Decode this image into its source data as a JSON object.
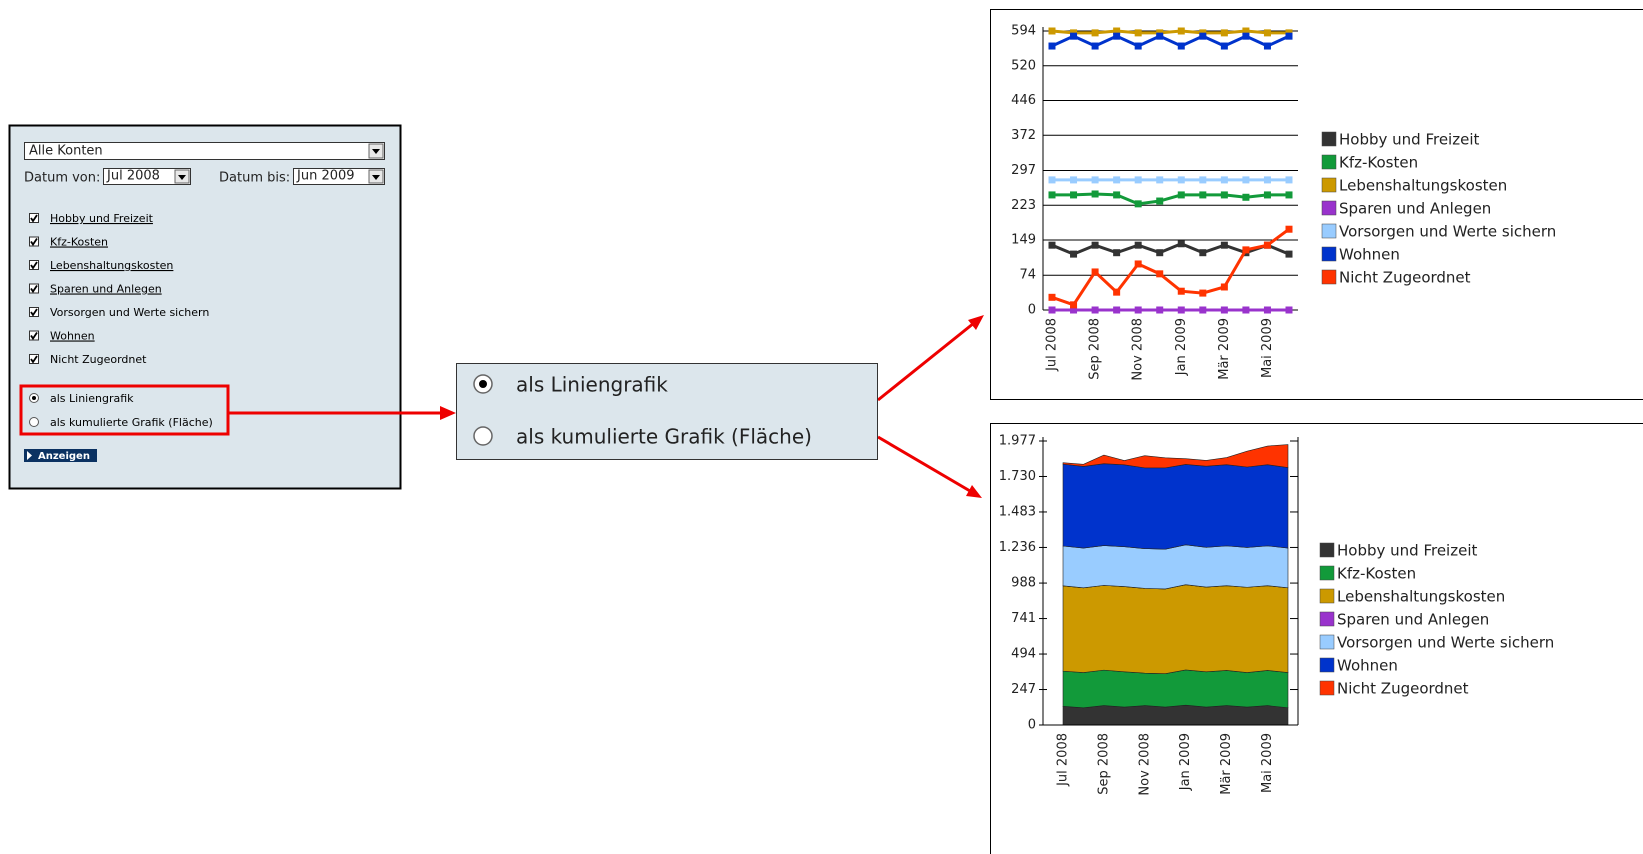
{
  "form": {
    "account": "Alle Konten",
    "from_label": "Datum von:",
    "from_value": "Jul 2008",
    "to_label": "Datum bis:",
    "to_value": "Jun 2009",
    "checkboxes": [
      "Hobby und Freizeit",
      "Kfz-Kosten",
      "Lebenshaltungskosten",
      "Sparen und Anlegen",
      "Vorsorgen und Werte sichern",
      "Wohnen",
      "Nicht Zugeordnet"
    ],
    "radios": [
      "als Liniengrafik",
      "als kumulierte Grafik (Fläche)"
    ],
    "button": "Anzeigen"
  },
  "chart_data": [
    {
      "type": "line",
      "categories": [
        "Jul 2008",
        null,
        "Sep 2008",
        null,
        "Nov 2008",
        null,
        "Jan 2009",
        null,
        "Mär 2009",
        null,
        "Mai 2009",
        null
      ],
      "ylim": [
        0,
        594
      ],
      "yticks": [
        0,
        74,
        149,
        223,
        297,
        372,
        446,
        520,
        594
      ],
      "grid": true,
      "series": [
        {
          "name": "Hobby und Freizeit",
          "color": "#333333",
          "values": [
            138,
            119,
            138,
            122,
            138,
            122,
            141,
            122,
            138,
            122,
            138,
            119
          ]
        },
        {
          "name": "Kfz-Kosten",
          "color": "#129a3a",
          "values": [
            245,
            245,
            247,
            245,
            226,
            232,
            245,
            245,
            245,
            240,
            245,
            245
          ]
        },
        {
          "name": "Lebenshaltungskosten",
          "color": "#cc9900",
          "values": [
            594,
            590,
            590,
            594,
            590,
            590,
            594,
            590,
            590,
            594,
            590,
            590
          ]
        },
        {
          "name": "Sparen und Anlegen",
          "color": "#9933cc",
          "values": [
            0,
            0,
            0,
            0,
            0,
            0,
            0,
            0,
            0,
            0,
            0,
            0
          ]
        },
        {
          "name": "Vorsorgen und Werte sichern",
          "color": "#99ccff",
          "values": [
            277,
            277,
            277,
            277,
            277,
            277,
            277,
            277,
            277,
            277,
            277,
            277
          ]
        },
        {
          "name": "Wohnen",
          "color": "#0033cc",
          "values": [
            562,
            583,
            562,
            583,
            562,
            583,
            562,
            583,
            562,
            583,
            562,
            583
          ]
        },
        {
          "name": "Nicht Zugeordnet",
          "color": "#ff3300",
          "values": [
            27,
            11,
            81,
            38,
            98,
            77,
            40,
            36,
            49,
            128,
            138,
            172
          ]
        }
      ]
    },
    {
      "type": "area",
      "categories": [
        "Jul 2008",
        null,
        "Sep 2008",
        null,
        "Nov 2008",
        null,
        "Jan 2009",
        null,
        "Mär 2009",
        null,
        "Mai 2009",
        null
      ],
      "ylim": [
        0,
        1977
      ],
      "yticks": [
        0,
        247,
        494,
        741,
        988,
        {
          "value": 1236,
          "label": "1.236"
        },
        {
          "value": 1483,
          "label": "1.483"
        },
        {
          "value": 1730,
          "label": "1.730"
        },
        {
          "value": 1977,
          "label": "1.977"
        }
      ],
      "grid": false,
      "series": [
        {
          "name": "Hobby und Freizeit",
          "color": "#333333",
          "values": [
            130,
            120,
            135,
            125,
            135,
            125,
            138,
            125,
            135,
            125,
            135,
            120
          ]
        },
        {
          "name": "Kfz-Kosten",
          "color": "#129a3a",
          "values": [
            245,
            245,
            247,
            245,
            226,
            232,
            245,
            245,
            245,
            240,
            245,
            245
          ]
        },
        {
          "name": "Lebenshaltungskosten",
          "color": "#cc9900",
          "values": [
            594,
            590,
            590,
            594,
            590,
            590,
            594,
            590,
            590,
            594,
            590,
            590
          ]
        },
        {
          "name": "Sparen und Anlegen",
          "color": "#9933cc",
          "values": [
            0,
            0,
            0,
            0,
            0,
            0,
            0,
            0,
            0,
            0,
            0,
            0
          ]
        },
        {
          "name": "Vorsorgen und Werte sichern",
          "color": "#99ccff",
          "values": [
            277,
            277,
            277,
            277,
            277,
            277,
            277,
            277,
            277,
            277,
            277,
            277
          ]
        },
        {
          "name": "Wohnen",
          "color": "#0033cc",
          "values": [
            570,
            568,
            570,
            570,
            562,
            566,
            560,
            565,
            565,
            560,
            565,
            560
          ]
        },
        {
          "name": "Nicht Zugeordnet",
          "color": "#ff3300",
          "values": [
            10,
            15,
            60,
            30,
            85,
            70,
            40,
            40,
            50,
            110,
            130,
            160
          ]
        }
      ]
    }
  ]
}
